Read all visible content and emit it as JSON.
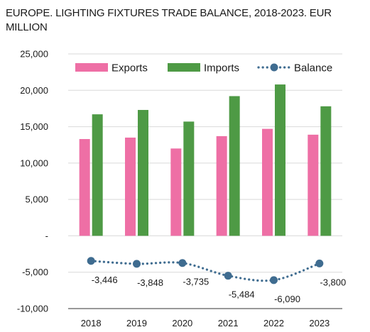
{
  "chart_data": {
    "type": "bar",
    "title": "EUROPE. LIGHTING FIXTURES TRADE BALANCE, 2018-2023. EUR MILLION",
    "categories": [
      "2018",
      "2019",
      "2020",
      "2021",
      "2022",
      "2023"
    ],
    "series": [
      {
        "name": "Exports",
        "type": "bar",
        "color": "#ee6fa5",
        "values": [
          13300,
          13500,
          12000,
          13700,
          14700,
          13900
        ]
      },
      {
        "name": "Imports",
        "type": "bar",
        "color": "#4e9a45",
        "values": [
          16700,
          17300,
          15700,
          19200,
          20800,
          17800
        ]
      },
      {
        "name": "Balance",
        "type": "line",
        "style": "dotted-with-markers",
        "color": "#3f6c90",
        "values": [
          -3446,
          -3848,
          -3735,
          -5484,
          -6090,
          -3800
        ],
        "labels": [
          "-3,446",
          "-3,848",
          "-3,735",
          "-5,484",
          "-6,090",
          "-3,800"
        ]
      }
    ],
    "yticks": [
      {
        "value": 25000,
        "label": "25,000"
      },
      {
        "value": 20000,
        "label": "20,000"
      },
      {
        "value": 15000,
        "label": "15,000"
      },
      {
        "value": 10000,
        "label": "10,000"
      },
      {
        "value": 5000,
        "label": "5,000"
      },
      {
        "value": 0,
        "label": "-"
      },
      {
        "value": -5000,
        "label": "-5,000"
      },
      {
        "value": -10000,
        "label": "-10,000"
      }
    ],
    "ylim": [
      -10000,
      25000
    ],
    "grid": true,
    "legend_position": "top"
  }
}
